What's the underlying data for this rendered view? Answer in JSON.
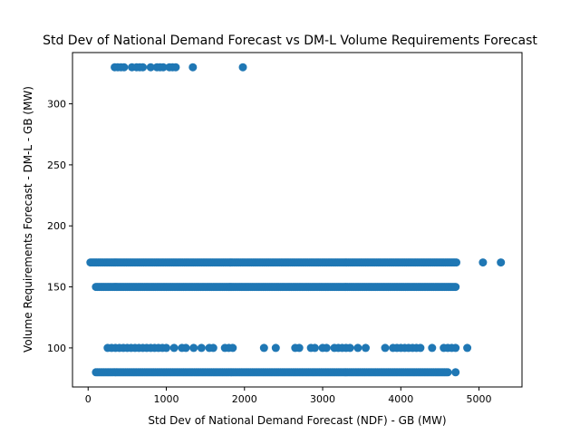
{
  "chart_data": {
    "type": "scatter",
    "title": "Std Dev of National Demand Forecast vs DM-L Volume Requirements Forecast",
    "xlabel": "Std Dev of National Demand Forecast (NDF) - GB (MW)",
    "ylabel": "Volume Requirements Forecast - DM-L - GB (MW)",
    "xlim": [
      -200,
      5550
    ],
    "ylim": [
      68,
      342
    ],
    "xticks": [
      0,
      1000,
      2000,
      3000,
      4000,
      5000
    ],
    "yticks": [
      100,
      150,
      200,
      250,
      300
    ],
    "grid": false,
    "marker_color": "#1f77b4",
    "series": [
      {
        "values_by_level": [
          {
            "y": 330,
            "x": [
              340,
              380,
              420,
              460,
              560,
              620,
              660,
              700,
              800,
              880,
              920,
              960,
              1040,
              1080,
              1120,
              1340,
              1980
            ]
          },
          {
            "y": 170,
            "x_range": [
              30,
              4720
            ],
            "step": 20,
            "extra_x": [
              5050,
              5280
            ]
          },
          {
            "y": 150,
            "x_range": [
              100,
              4700
            ],
            "step": 20
          },
          {
            "y": 100,
            "x": [
              250,
              300,
              350,
              400,
              450,
              500,
              550,
              600,
              650,
              700,
              750,
              800,
              850,
              900,
              950,
              1000,
              1100,
              1200,
              1250,
              1350,
              1450,
              1550,
              1600,
              1750,
              1800,
              1850,
              2250,
              2400,
              2650,
              2700,
              2850,
              2900,
              3000,
              3050,
              3150,
              3200,
              3250,
              3300,
              3350,
              3450,
              3550,
              3800,
              3900,
              3950,
              4000,
              4050,
              4100,
              4150,
              4200,
              4250,
              4400,
              4550,
              4600,
              4650,
              4700,
              4850
            ]
          },
          {
            "y": 80,
            "x_range": [
              100,
              4600
            ],
            "step": 20,
            "extra_x": [
              4700
            ]
          }
        ]
      }
    ]
  }
}
